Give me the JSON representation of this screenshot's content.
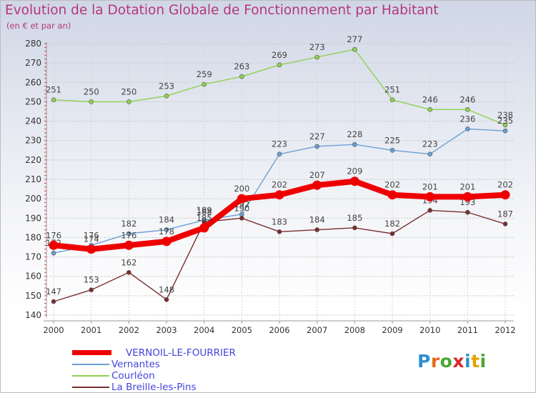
{
  "title": "Evolution de la Dotation Globale de Fonctionnement par Habitant",
  "subtitle": "(en € et par an)",
  "logo": {
    "text": "Proxiti",
    "letter_colors": [
      "#2f8fd0",
      "#e36b1a",
      "#4aa82e",
      "#d8282d",
      "#2f8fd0",
      "#e6a100",
      "#4aa82e"
    ]
  },
  "chart_data": {
    "type": "line",
    "x": [
      "2000",
      "2001",
      "2002",
      "2003",
      "2004",
      "2005",
      "2006",
      "2007",
      "2008",
      "2009",
      "2010",
      "2011",
      "2012"
    ],
    "ylim": [
      140,
      280
    ],
    "yticks": [
      140,
      150,
      160,
      170,
      180,
      190,
      200,
      210,
      220,
      230,
      240,
      250,
      260,
      270,
      280
    ],
    "grid": true,
    "legend_position": "bottom-left",
    "series": [
      {
        "name": "Courléon",
        "color": "#8fd14f",
        "highlight": false,
        "values": [
          251,
          250,
          250,
          253,
          259,
          263,
          269,
          273,
          277,
          251,
          246,
          246,
          238
        ],
        "labels": [
          "251",
          "250",
          "250",
          "253",
          "259",
          "263",
          "269",
          "273",
          "277",
          "251",
          "246",
          "246",
          "238"
        ]
      },
      {
        "name": "Vernantes",
        "color": "#6a9fd4",
        "highlight": false,
        "values": [
          172,
          176,
          182,
          184,
          189,
          192,
          223,
          227,
          228,
          225,
          223,
          236,
          235
        ],
        "labels": [
          "172",
          "176",
          "182",
          "184",
          "189",
          "192",
          "223",
          "227",
          "228",
          "225",
          "223",
          "236",
          "235"
        ]
      },
      {
        "name": "La Breille-les-Pins",
        "color": "#7a2e2e",
        "highlight": false,
        "values": [
          147,
          153,
          162,
          148,
          188,
          190,
          183,
          184,
          185,
          182,
          194,
          193,
          187
        ],
        "labels": [
          "147",
          "153",
          "162",
          "148",
          "188",
          "190",
          "183",
          "184",
          "185",
          "182",
          "194",
          "193",
          "187"
        ]
      },
      {
        "name": "VERNOIL-LE-FOURRIER",
        "color": "#ee0000",
        "highlight": true,
        "values": [
          176,
          174,
          176,
          178,
          185,
          200,
          202,
          207,
          209,
          202,
          201,
          201,
          202
        ],
        "labels": [
          "176",
          "174",
          "176",
          "178",
          "185",
          "200",
          "202",
          "207",
          "209",
          "202",
          "201",
          "201",
          "202"
        ]
      }
    ],
    "legend_order": [
      "VERNOIL-LE-FOURRIER",
      "Vernantes",
      "Courléon",
      "La Breille-les-Pins"
    ],
    "legend_label_color": "#4444dd"
  }
}
